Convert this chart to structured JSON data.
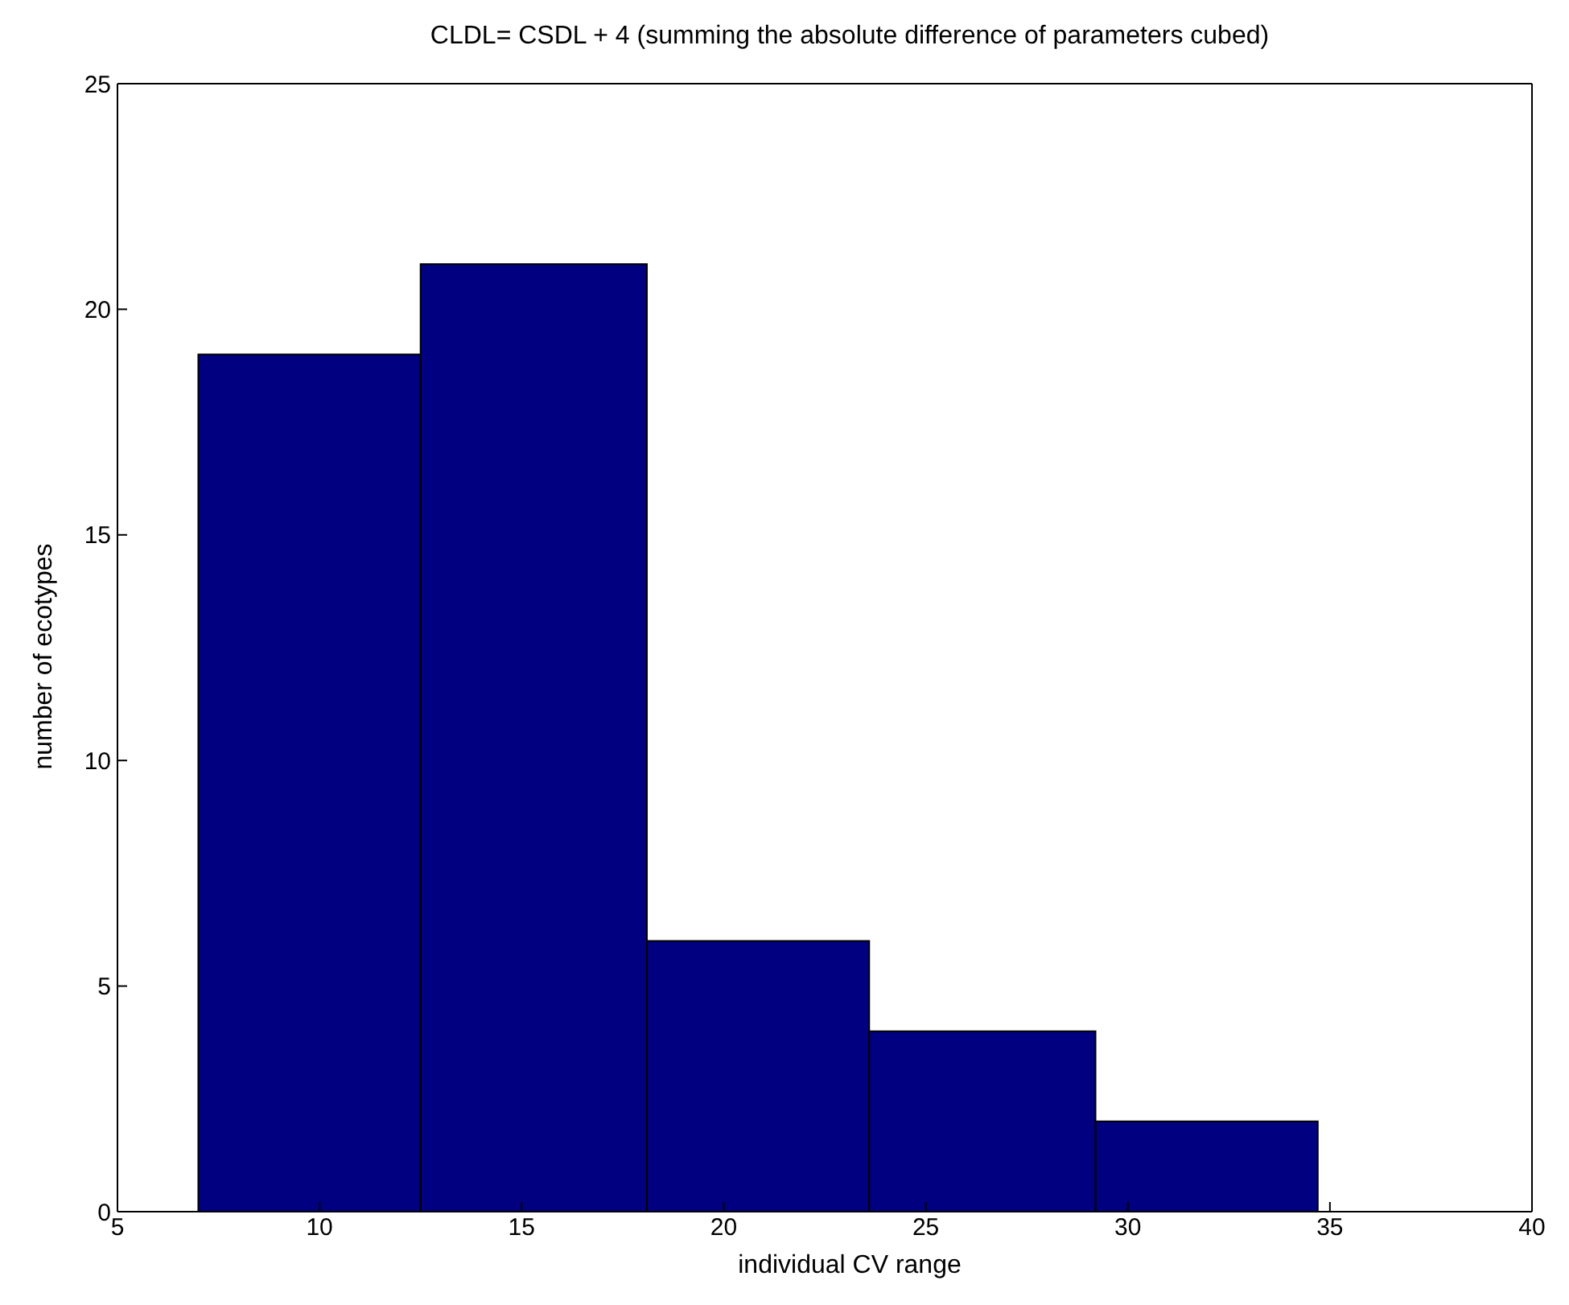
{
  "chart_data": {
    "type": "histogram",
    "title": "CLDL= CSDL + 4 (summing the absolute difference of parameters cubed)",
    "xlabel": "individual CV range",
    "ylabel": "number of ecotypes",
    "bins": [
      7.0,
      12.5,
      18.1,
      23.6,
      29.2,
      34.7
    ],
    "values": [
      19,
      21,
      6,
      4,
      2
    ],
    "color": "#000080",
    "xlim": [
      5,
      40
    ],
    "xticks": [
      5,
      10,
      15,
      20,
      25,
      30,
      35,
      40
    ],
    "ylim": [
      0,
      25
    ],
    "yticks": [
      0,
      5,
      10,
      15,
      20,
      25
    ],
    "grid": false
  }
}
